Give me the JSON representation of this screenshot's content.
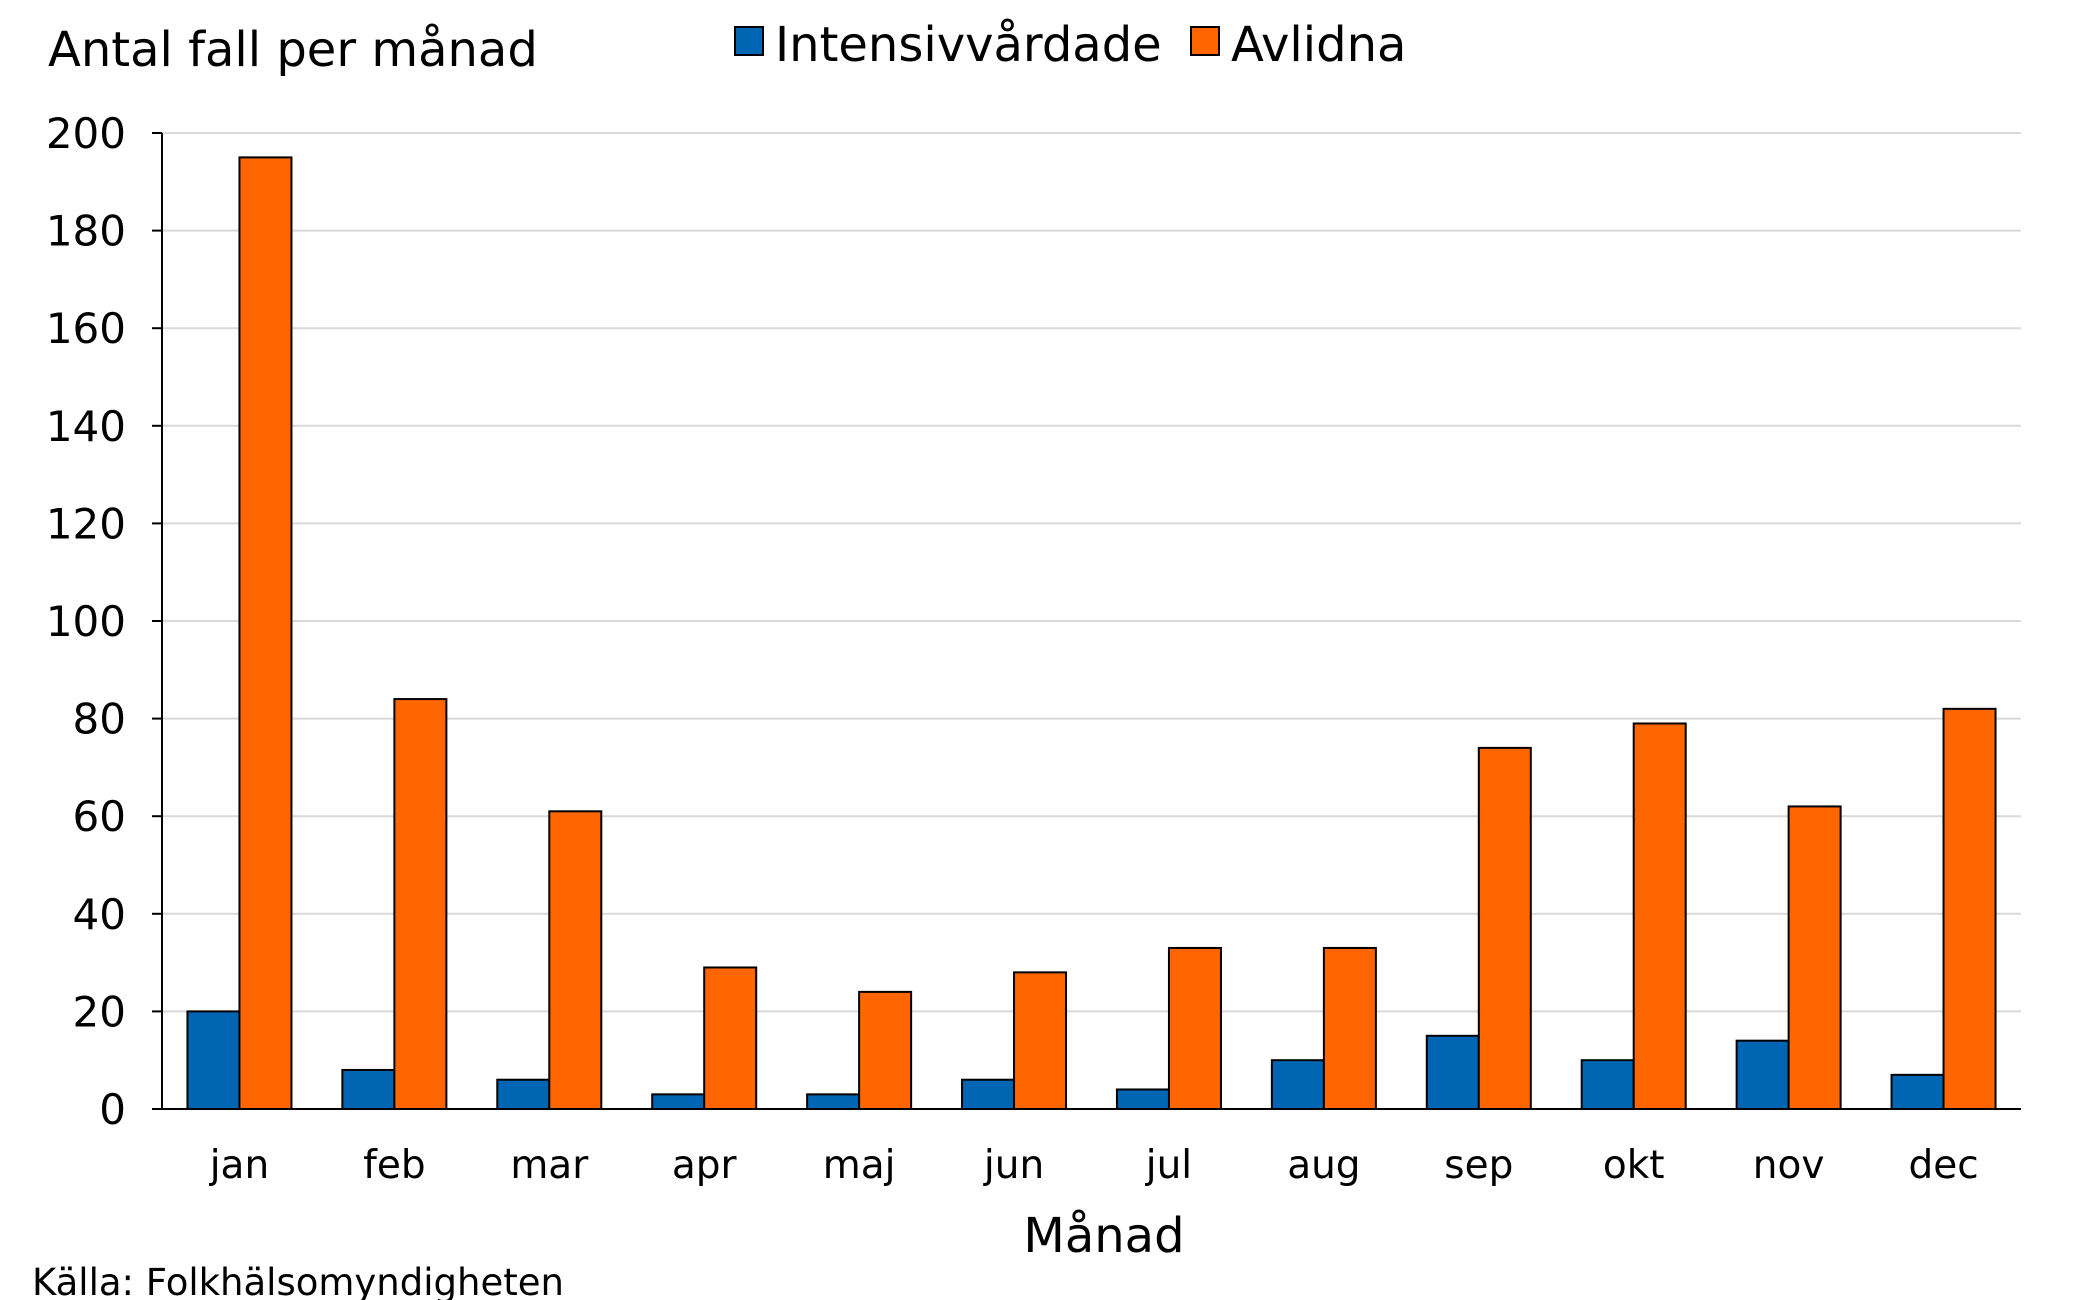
{
  "chart_data": {
    "type": "bar",
    "ylabel": "Antal fall per månad",
    "xlabel": "Månad",
    "source": "Källa: Folkhälsomyndigheten",
    "ylim": [
      0,
      200
    ],
    "yticks": [
      0,
      20,
      40,
      60,
      80,
      100,
      120,
      140,
      160,
      180,
      200
    ],
    "grid": true,
    "legend_position": "top",
    "categories": [
      "jan",
      "feb",
      "mar",
      "apr",
      "maj",
      "jun",
      "jul",
      "aug",
      "sep",
      "okt",
      "nov",
      "dec"
    ],
    "series": [
      {
        "name": "Intensivvårdade",
        "color": "#0066b3",
        "values": [
          20,
          8,
          6,
          3,
          3,
          6,
          4,
          10,
          15,
          10,
          14,
          7
        ]
      },
      {
        "name": "Avlidna",
        "color": "#ff6600",
        "values": [
          195,
          84,
          61,
          29,
          24,
          28,
          33,
          33,
          74,
          79,
          62,
          82
        ]
      }
    ]
  }
}
